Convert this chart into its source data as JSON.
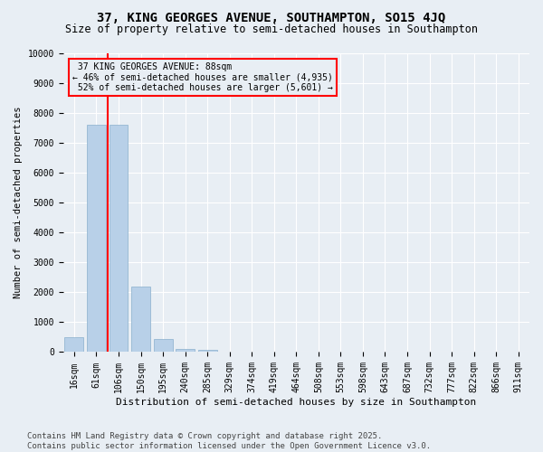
{
  "title": "37, KING GEORGES AVENUE, SOUTHAMPTON, SO15 4JQ",
  "subtitle": "Size of property relative to semi-detached houses in Southampton",
  "xlabel": "Distribution of semi-detached houses by size in Southampton",
  "ylabel": "Number of semi-detached properties",
  "categories": [
    "16sqm",
    "61sqm",
    "106sqm",
    "150sqm",
    "195sqm",
    "240sqm",
    "285sqm",
    "329sqm",
    "374sqm",
    "419sqm",
    "464sqm",
    "508sqm",
    "553sqm",
    "598sqm",
    "643sqm",
    "687sqm",
    "732sqm",
    "777sqm",
    "822sqm",
    "866sqm",
    "911sqm"
  ],
  "values": [
    500,
    7600,
    7600,
    2200,
    450,
    100,
    60,
    0,
    0,
    0,
    0,
    0,
    0,
    0,
    0,
    0,
    0,
    0,
    0,
    0,
    0
  ],
  "bar_color": "#b8d0e8",
  "bar_edgecolor": "#8ab0cc",
  "redline_x": 1.5,
  "smaller_pct": "46%",
  "smaller_count": "4,935",
  "larger_pct": "52%",
  "larger_count": "5,601",
  "property_label": "37 KING GEORGES AVENUE: 88sqm",
  "ylim": [
    0,
    10000
  ],
  "yticks": [
    0,
    1000,
    2000,
    3000,
    4000,
    5000,
    6000,
    7000,
    8000,
    9000,
    10000
  ],
  "background_color": "#e8eef4",
  "grid_color": "#ffffff",
  "title_fontsize": 10,
  "subtitle_fontsize": 8.5,
  "axis_fontsize": 7,
  "xlabel_fontsize": 8,
  "ylabel_fontsize": 7.5,
  "footer_text": "Contains HM Land Registry data © Crown copyright and database right 2025.\nContains public sector information licensed under the Open Government Licence v3.0.",
  "footer_fontsize": 6.5
}
